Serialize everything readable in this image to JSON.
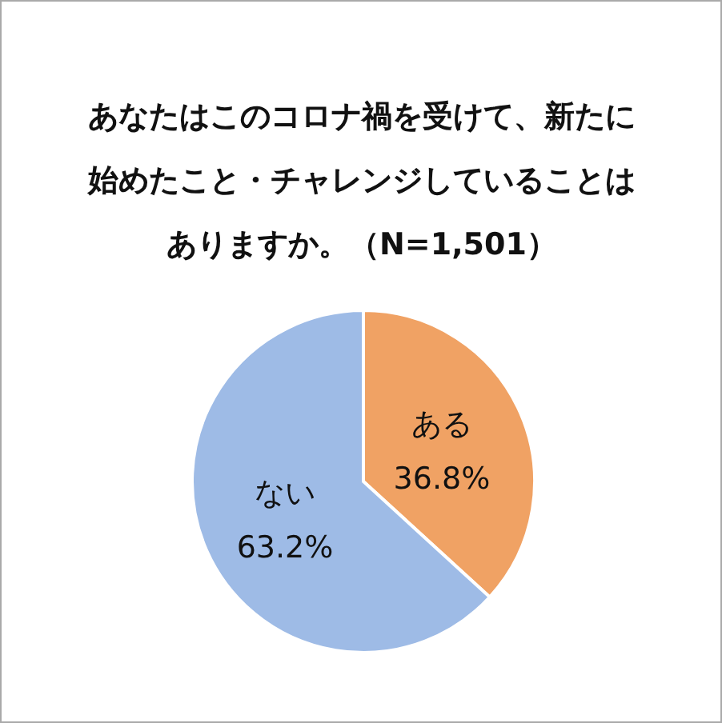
{
  "chart_data": {
    "type": "pie",
    "title": "あなたはこのコロナ禍を受けて、新たに始めたこと・チャレンジしていることはありますか。（N=1,501）",
    "categories": [
      "ある",
      "ない"
    ],
    "values": [
      36.8,
      63.2
    ],
    "colors": [
      "#f0a264",
      "#9ebbe6"
    ],
    "value_labels": [
      "36.8%",
      "63.2%"
    ]
  }
}
